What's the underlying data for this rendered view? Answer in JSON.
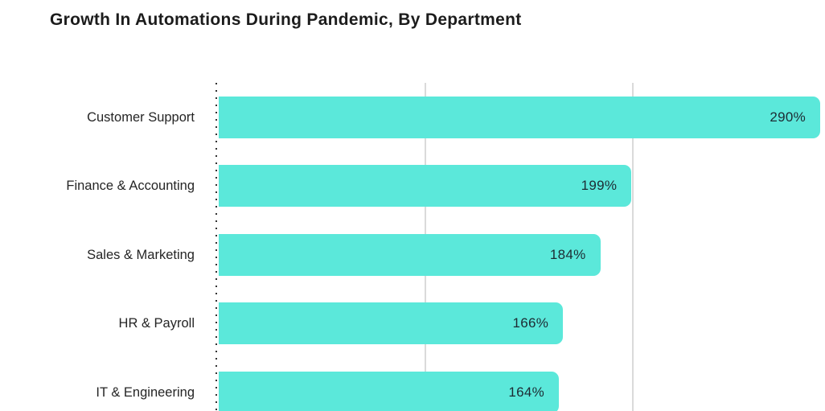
{
  "header": {
    "title": "Growth In Automations During Pandemic, By Department"
  },
  "chart_data": {
    "type": "bar",
    "orientation": "horizontal",
    "title": "Growth In Automations During Pandemic, By Department",
    "categories": [
      "Customer Support",
      "Finance & Accounting",
      "Sales & Marketing",
      "HR & Payroll",
      "IT & Engineering"
    ],
    "values": [
      290,
      199,
      184,
      166,
      164
    ],
    "value_labels": [
      "290%",
      "199%",
      "184%",
      "166%",
      "164%"
    ],
    "xlabel": "",
    "ylabel": "",
    "xlim": [
      0,
      290
    ],
    "gridlines_at": [
      100,
      200
    ],
    "grid": "vertical-only",
    "legend": "none",
    "axis_style": "dotted-zero-line",
    "colors": {
      "bar": "#5BE8DA",
      "value_label": "#1D2B33",
      "category_label": "#252525",
      "gridline": "#DADADA",
      "axis_dots": "#333333",
      "title": "#1C1C1C",
      "background": "#FFFFFF"
    }
  }
}
